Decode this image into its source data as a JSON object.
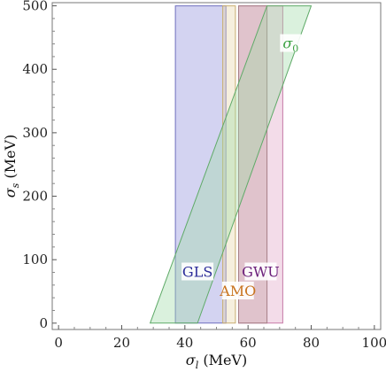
{
  "chart_data": {
    "type": "area",
    "xlabel_main": "σ",
    "xlabel_sub": "l",
    "xlabel_unit": " (MeV)",
    "ylabel_main": "σ",
    "ylabel_sub": "s",
    "ylabel_unit": " (MeV)",
    "xlim": [
      -2,
      102
    ],
    "ylim": [
      -10,
      505
    ],
    "xticks": [
      0,
      20,
      40,
      60,
      80,
      100
    ],
    "yticks": [
      0,
      100,
      200,
      300,
      400,
      500
    ],
    "grid": false,
    "regions": [
      {
        "name": "GLS",
        "label_text": "GLS",
        "fill": "#8b8bd9",
        "stroke": "#6f6fbf",
        "text_color": "#2b2b99",
        "points": [
          [
            37,
            0
          ],
          [
            53,
            0
          ],
          [
            53,
            500
          ],
          [
            37,
            500
          ]
        ],
        "label_at": [
          44,
          80
        ]
      },
      {
        "name": "AMO",
        "label_text": "AMO",
        "fill": "#e8d6a8",
        "stroke": "#c9ae70",
        "text_color": "#c8731e",
        "points": [
          [
            52,
            0
          ],
          [
            56,
            0
          ],
          [
            56,
            500
          ],
          [
            52,
            500
          ]
        ],
        "label_at": [
          56.8,
          50
        ]
      },
      {
        "name": "GWU",
        "label_text": "GWU",
        "fill": "#e0a2c4",
        "stroke": "#c77ba8",
        "text_color": "#6b1f7a",
        "points": [
          [
            57,
            0
          ],
          [
            71,
            0
          ],
          [
            71,
            500
          ],
          [
            57,
            500
          ]
        ],
        "label_at": [
          64,
          80
        ]
      },
      {
        "name": "GWU2",
        "label_text": "",
        "fill": "#c9a3a8",
        "stroke": "#a78088",
        "text_color": "#6b1f7a",
        "points": [
          [
            57,
            0
          ],
          [
            66,
            0
          ],
          [
            66,
            500
          ],
          [
            57,
            500
          ]
        ],
        "label_at": null
      },
      {
        "name": "σ0",
        "label_text": "σ",
        "label_sub": "0",
        "fill": "#9fd9a6",
        "stroke": "#5faa68",
        "text_color": "#3aa040",
        "points": [
          [
            29,
            0
          ],
          [
            44,
            0
          ],
          [
            80,
            500
          ],
          [
            66,
            500
          ]
        ],
        "label_at": [
          73.5,
          440
        ]
      }
    ]
  }
}
